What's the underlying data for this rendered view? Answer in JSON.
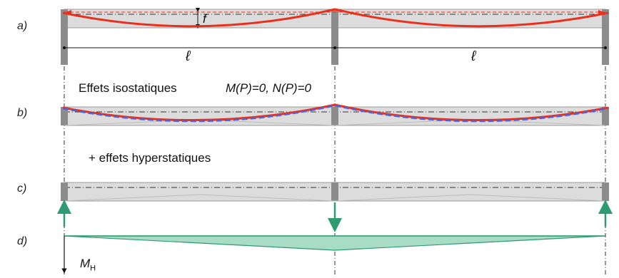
{
  "rows": {
    "a": "a)",
    "b": "b)",
    "c": "c)",
    "d": "d)"
  },
  "labels": {
    "f": "f",
    "span_left": "ℓ",
    "span_right": "ℓ",
    "isostatic": "Effets isostatiques",
    "isostatic_cond": "M(P)=0, N(P)=0",
    "hyperstatic": "+ effets hyperstatiques",
    "moment_base": "M",
    "moment_sub": "H"
  },
  "colors": {
    "beam_fill": "#dcdcdc",
    "beam_stroke": "#9a9a9a",
    "support": "#8c8c8c",
    "cable": "#e8301c",
    "cable_dashed": "#4f63d8",
    "reaction": "#2e9b72",
    "moment_fill": "#a9dcc5",
    "moment_stroke": "#2e9b72"
  }
}
